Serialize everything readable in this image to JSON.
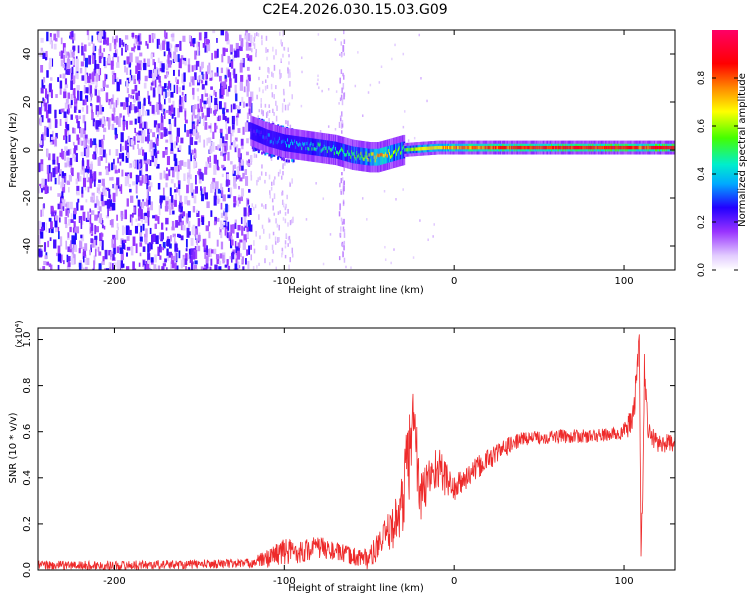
{
  "title": "C2E4.2026.030.15.03.G09",
  "colors": {
    "snr_line": "#ee2a2a",
    "background": "#ffffff",
    "axis": "#000000"
  },
  "chart_data": [
    {
      "type": "heatmap",
      "xlabel": "Height of straight line (km)",
      "ylabel": "Frequency (Hz)",
      "xlim": [
        -245,
        130
      ],
      "ylim": [
        -50,
        50
      ],
      "xticks": [
        -200,
        -100,
        0,
        100
      ],
      "xtick_labels": [
        "-200",
        "-100",
        "0",
        "100"
      ],
      "yticks": [
        -40,
        -20,
        0,
        20,
        40
      ],
      "ytick_labels": [
        "-40",
        "-20",
        "0",
        "20",
        "40"
      ],
      "colorbar": {
        "label": "Normalized spectral amplitude",
        "range": [
          0,
          1
        ],
        "ticks": [
          0.0,
          0.2,
          0.4,
          0.6,
          0.8
        ],
        "tick_labels": [
          "0.0",
          "0.2",
          "0.4",
          "0.6",
          "0.8"
        ],
        "colormap": "rainbow (white -> violet -> blue -> cyan -> green -> yellow -> red -> magenta)"
      },
      "features": [
        {
          "name": "noise region",
          "x_range": [
            -245,
            -120
          ],
          "freq_range": [
            -50,
            50
          ],
          "amplitude": "0.05-0.3 (scattered speckle)"
        },
        {
          "name": "sparse transition",
          "x_range": [
            -120,
            -95
          ],
          "freq_range": [
            -50,
            50
          ],
          "amplitude": "~0.05"
        },
        {
          "name": "interference stripe",
          "x_range": [
            -68,
            -65
          ],
          "freq_range": [
            -50,
            50
          ],
          "amplitude": "~0.1"
        },
        {
          "name": "signal trace onset",
          "x_range": [
            -120,
            -95
          ],
          "freq_range": [
            -8,
            16
          ],
          "amplitude": "0.2-0.4"
        }
      ],
      "signal_trace": {
        "x": [
          -120,
          -110,
          -100,
          -90,
          -80,
          -70,
          -60,
          -50,
          -45,
          -40,
          -35,
          -30,
          -20,
          -10,
          0,
          20,
          40,
          60,
          80,
          100,
          110,
          120,
          130
        ],
        "freq": [
          8,
          5,
          3,
          2,
          1,
          0,
          -2,
          -3,
          -3,
          -2,
          -1,
          0,
          0.5,
          1,
          1,
          1,
          1,
          1,
          1,
          1,
          1,
          1,
          1
        ],
        "amplitude": [
          0.25,
          0.3,
          0.35,
          0.4,
          0.45,
          0.45,
          0.5,
          0.6,
          0.75,
          0.7,
          0.55,
          0.5,
          0.65,
          0.7,
          0.75,
          0.8,
          0.85,
          0.85,
          0.85,
          0.9,
          0.8,
          0.9,
          0.9
        ]
      }
    },
    {
      "type": "line",
      "xlabel": "Height of straight line (km)",
      "ylabel": "SNR (10 * v/v)",
      "y_multiplier": "(x10⁴)",
      "xlim": [
        -245,
        130
      ],
      "ylim": [
        0,
        1.05
      ],
      "xticks": [
        -200,
        -100,
        0,
        100
      ],
      "xtick_labels": [
        "-200",
        "-100",
        "0",
        "100"
      ],
      "yticks": [
        0.0,
        0.2,
        0.4,
        0.6,
        0.8,
        1.0
      ],
      "ytick_labels": [
        "0.0",
        "0.2",
        "0.4",
        "0.6",
        "0.8",
        "1.0"
      ],
      "series": [
        {
          "x": [
            -245,
            -200,
            -150,
            -120,
            -110,
            -105,
            -100,
            -90,
            -80,
            -70,
            -60,
            -50,
            -45,
            -40,
            -35,
            -30,
            -28,
            -25,
            -24,
            -22,
            -20,
            -15,
            -10,
            0,
            10,
            20,
            30,
            40,
            60,
            80,
            95,
            100,
            105,
            107,
            109,
            110,
            111,
            112,
            114,
            120,
            130
          ],
          "y": [
            0.02,
            0.02,
            0.025,
            0.03,
            0.05,
            0.07,
            0.08,
            0.08,
            0.1,
            0.08,
            0.06,
            0.05,
            0.1,
            0.15,
            0.2,
            0.3,
            0.45,
            0.55,
            0.7,
            0.5,
            0.3,
            0.4,
            0.45,
            0.35,
            0.42,
            0.48,
            0.53,
            0.57,
            0.58,
            0.58,
            0.59,
            0.6,
            0.65,
            0.8,
            1.0,
            0.1,
            0.3,
            0.9,
            0.6,
            0.55,
            0.55
          ],
          "noise_amplitude": [
            0.02,
            0.02,
            0.02,
            0.02,
            0.04,
            0.05,
            0.06,
            0.05,
            0.05,
            0.04,
            0.04,
            0.05,
            0.06,
            0.08,
            0.1,
            0.15,
            0.2,
            0.2,
            0.15,
            0.15,
            0.12,
            0.1,
            0.1,
            0.06,
            0.05,
            0.05,
            0.04,
            0.03,
            0.03,
            0.03,
            0.03,
            0.04,
            0.06,
            0.08,
            0.05,
            0.05,
            0.05,
            0.08,
            0.05,
            0.04,
            0.04
          ]
        }
      ]
    }
  ]
}
